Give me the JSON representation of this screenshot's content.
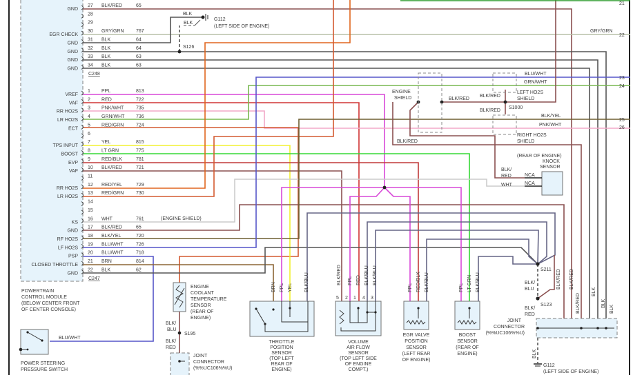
{
  "connectors": {
    "c248": {
      "label": "C248",
      "pins": [
        {
          "pin": "27",
          "color": "BLK/RED",
          "circuit": "65",
          "function": "GND"
        },
        {
          "pin": "28",
          "color": "",
          "circuit": "",
          "function": ""
        },
        {
          "pin": "29",
          "color": "",
          "circuit": "",
          "function": ""
        },
        {
          "pin": "30",
          "color": "GRY/GRN",
          "circuit": "767",
          "function": "EGR CHECK"
        },
        {
          "pin": "31",
          "color": "BLK",
          "circuit": "64",
          "function": "GND"
        },
        {
          "pin": "32",
          "color": "BLK",
          "circuit": "64",
          "function": "GND"
        },
        {
          "pin": "33",
          "color": "BLK",
          "circuit": "63",
          "function": "GND"
        },
        {
          "pin": "34",
          "color": "BLK",
          "circuit": "63",
          "function": "GND"
        }
      ]
    },
    "c247": {
      "label": "C247",
      "pins": [
        {
          "pin": "1",
          "color": "PPL",
          "circuit": "813",
          "function": "VREF"
        },
        {
          "pin": "2",
          "color": "RED",
          "circuit": "722",
          "function": "VAF"
        },
        {
          "pin": "3",
          "color": "PNK/WHT",
          "circuit": "735",
          "function": "RR HO2S"
        },
        {
          "pin": "4",
          "color": "GRN/WHT",
          "circuit": "736",
          "function": "LR HO2S"
        },
        {
          "pin": "5",
          "color": "RED/GRN",
          "circuit": "724",
          "function": "ECT"
        },
        {
          "pin": "6",
          "color": "",
          "circuit": "",
          "function": ""
        },
        {
          "pin": "7",
          "color": "YEL",
          "circuit": "815",
          "function": "TPS INPUT"
        },
        {
          "pin": "8",
          "color": "LT GRN",
          "circuit": "775",
          "function": "BOOST"
        },
        {
          "pin": "9",
          "color": "RED/BLK",
          "circuit": "781",
          "function": "EVP"
        },
        {
          "pin": "10",
          "color": "BLK/RED",
          "circuit": "721",
          "function": "VAF"
        },
        {
          "pin": "11",
          "color": "",
          "circuit": "",
          "function": ""
        },
        {
          "pin": "12",
          "color": "RED/YEL",
          "circuit": "729",
          "function": "RR HO2S"
        },
        {
          "pin": "13",
          "color": "RED/GRN",
          "circuit": "730",
          "function": "LR HO2S"
        },
        {
          "pin": "14",
          "color": "",
          "circuit": "",
          "function": ""
        },
        {
          "pin": "15",
          "color": "",
          "circuit": "",
          "function": ""
        },
        {
          "pin": "16",
          "color": "WHT",
          "circuit": "761",
          "function": "KS"
        },
        {
          "pin": "17",
          "color": "BLK/RED",
          "circuit": "65",
          "function": "GND"
        },
        {
          "pin": "18",
          "color": "BLK/YEL",
          "circuit": "720",
          "function": "RF HO2S"
        },
        {
          "pin": "19",
          "color": "BLU/WHT",
          "circuit": "726",
          "function": "LF HO2S"
        },
        {
          "pin": "20",
          "color": "BLU/WHT",
          "circuit": "718",
          "function": "PSP"
        },
        {
          "pin": "21",
          "color": "BRN",
          "circuit": "814",
          "function": "CLOSED THROTTLE"
        },
        {
          "pin": "22",
          "color": "BLK",
          "circuit": "62",
          "function": "GND"
        }
      ]
    }
  },
  "wire_colors": {
    "BLK": "#555555",
    "BLK/RED": "#8a5050",
    "RED": "#d03535",
    "PPL": "#d848d8",
    "PNK/WHT": "#f2a8c8",
    "GRN/WHT": "#78b850",
    "RED/GRN": "#d45a30",
    "YEL": "#f2f030",
    "LT GRN": "#35d835",
    "RED/BLK": "#c03838",
    "RED/YEL": "#e0651e",
    "WHT": "#cccccc",
    "BLK/YEL": "#6e5e30",
    "BLU/WHT": "#5555c8",
    "BRN": "#8c6535",
    "GRY/GRN": "#b8c0a8",
    "BLK/BLU": "#656585",
    "GRN": "#2a9a2a"
  },
  "module": {
    "name_lines": [
      "POWERTRAIN",
      "CONTROL MODULE",
      "(BELOW CENTER FRONT",
      "OF CENTER CONSOLE)"
    ],
    "engine_shield_note": "(ENGINE SHIELD)"
  },
  "right_pins": [
    {
      "pin": "21",
      "color": ""
    },
    {
      "pin": "22",
      "color": "GRY/GRN"
    },
    {
      "pin": "23",
      "color": "BLU/WHT"
    },
    {
      "pin": "24",
      "color": "GRN/WHT"
    },
    {
      "pin": "25",
      "color": "BLK/YEL"
    },
    {
      "pin": "26",
      "color": "PNK/WHT"
    }
  ],
  "ground_top": {
    "id": "G112",
    "location": "(LEFT SIDE OF ENGINE)",
    "wire1": "BLK",
    "wire2": "BLK",
    "splice": "S126"
  },
  "shield": {
    "engine_shield": [
      "ENGINE",
      "SHIELD"
    ],
    "blk_red_1": "BLK/RED",
    "blk_red_2": "BLK/RED",
    "blk_red_3": "BLK/RED",
    "blk_red_4": "BLK/RED",
    "splice": "S1000",
    "left_ho2s_shield": [
      "LEFT HO2S",
      "SHIELD"
    ],
    "right_ho2s_shield": [
      "RIGHT HO2S",
      "SHIELD"
    ]
  },
  "knock_sensor": {
    "name_lines": [
      "(REAR OF ENGINE)",
      "KNOCK",
      "SENSOR"
    ],
    "wire1": [
      "BLK/",
      "RED"
    ],
    "wire2": "WHT",
    "pin1": "NCA",
    "pin2": "NCA"
  },
  "ect_sensor": {
    "name_lines": [
      "ENGINE",
      "COOLANT",
      "TEMPERATURE",
      "SENSOR",
      "(REAR OF",
      "ENGINE)"
    ],
    "wire_below": [
      "BLK/",
      "BLU"
    ],
    "splice": "S195",
    "wire_to_joint": [
      "BLK/",
      "RED"
    ]
  },
  "joint_left": {
    "name_lines": [
      "JOINT",
      "CONNECTOR",
      "(%%UC106%%U)"
    ]
  },
  "tps": {
    "name_lines": [
      "THROTTLE",
      "POSITION",
      "SENSOR",
      "(TOP LEFT",
      "REAR OF",
      "ENGINE)"
    ],
    "wires": [
      "BRN",
      "PPL",
      "YEL",
      "BLK/BLU"
    ]
  },
  "vaf": {
    "name_lines": [
      "VOLUME",
      "AIR FLOW",
      "SENSOR",
      "(TOP LEFT SIDE",
      "OF ENGINE",
      "COMPT.)"
    ],
    "wires": [
      "BLK/RED",
      "PPL",
      "RED",
      "BLK/BLU",
      "BLK/BLU"
    ],
    "pins": [
      "5",
      "2",
      "1",
      "4",
      "3"
    ]
  },
  "egr": {
    "name_lines": [
      "EGR VALVE",
      "POSITION",
      "SENSOR",
      "(LEFT REAR",
      "OF ENGINE)"
    ],
    "wires": [
      "PPL",
      "RED/BLK",
      "BLK/BLU"
    ]
  },
  "boost": {
    "name_lines": [
      "BOOST",
      "SENSOR",
      "(REAR OF",
      "ENGINE)"
    ],
    "wires": [
      "PPL",
      "LT GRN",
      "BLK/BLU"
    ]
  },
  "splices": {
    "s211": "S211",
    "s123": "S123",
    "s211_wire": [
      "BLK/",
      "BLU"
    ],
    "s123_wire": [
      "BLK/",
      "RED"
    ]
  },
  "joint_right": {
    "name_lines": [
      "JOINT",
      "CONNECTOR",
      "(%%UC106%%U)"
    ],
    "wires": [
      "BLK/RED",
      "BLK/RED",
      "BLK/RED",
      "BLK",
      "BLK",
      "BLK"
    ],
    "ground_wire": "BLK",
    "ground": "G112",
    "ground_location": "(LEFT SIDE OF ENGINE)"
  },
  "ps_switch": {
    "name_lines": [
      "POWER STEERING",
      "PRESSURE SWITCH"
    ],
    "wire": "BLU/WHT"
  }
}
